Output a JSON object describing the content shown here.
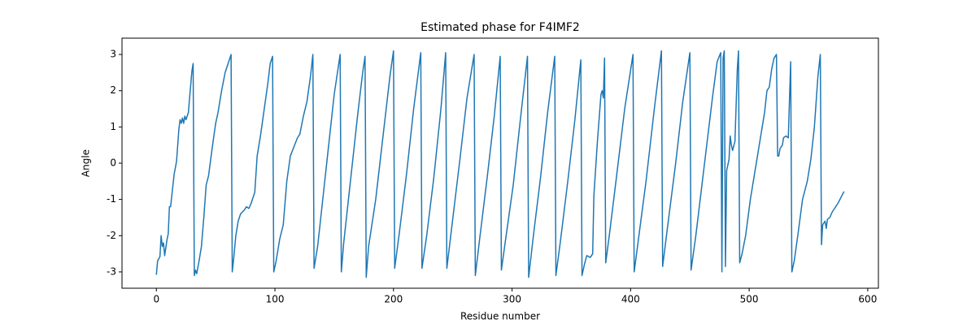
{
  "chart_data": {
    "type": "line",
    "title": "Estimated phase for F4IMF2",
    "x_label": "Residue number",
    "y_label": "Angle",
    "x": [
      0,
      1,
      3,
      4,
      5,
      6,
      7,
      9,
      10,
      11,
      12,
      13,
      15,
      17,
      19,
      20,
      21,
      22,
      23,
      24,
      25,
      27,
      28,
      30,
      31,
      32,
      33,
      34,
      36,
      38,
      40,
      42,
      44,
      47,
      50,
      52,
      55,
      58,
      63,
      64,
      65,
      67,
      69,
      71,
      74,
      76,
      78,
      80,
      83,
      85,
      88,
      91,
      94,
      96,
      98,
      99,
      101,
      104,
      107,
      110,
      113,
      116,
      119,
      121,
      124,
      127,
      130,
      132,
      133,
      136,
      140,
      145,
      150,
      155,
      156,
      158,
      162,
      166,
      170,
      174,
      176,
      177,
      179,
      185,
      191,
      197,
      200,
      201,
      205,
      211,
      217,
      223,
      224,
      228,
      234,
      240,
      244,
      245,
      249,
      256,
      262,
      268,
      269,
      273,
      279,
      285,
      290,
      291,
      295,
      301,
      307,
      313,
      314,
      318,
      324,
      330,
      336,
      337,
      341,
      347,
      353,
      358,
      359,
      361,
      363,
      366,
      368,
      369,
      372,
      375,
      376,
      377,
      378,
      379,
      382,
      388,
      395,
      402,
      403,
      407,
      413,
      420,
      426,
      427,
      431,
      438,
      444,
      450,
      451,
      455,
      462,
      469,
      473,
      476,
      477,
      478,
      479,
      480,
      481,
      483,
      484,
      485,
      486,
      488,
      490,
      491,
      492,
      494,
      497,
      501,
      506,
      510,
      513,
      515,
      517,
      519,
      521,
      523,
      524,
      525,
      526,
      528,
      529,
      531,
      533,
      535,
      536,
      538,
      541,
      545,
      549,
      552,
      555,
      558,
      560,
      561,
      562,
      564,
      565,
      566,
      568,
      570,
      575,
      580
    ],
    "series": [
      {
        "name": "phase",
        "color": "#1f77b4",
        "values": [
          -3.08,
          -2.7,
          -2.58,
          -2.0,
          -2.3,
          -2.2,
          -2.55,
          -2.1,
          -1.95,
          -1.2,
          -1.2,
          -0.9,
          -0.3,
          0.05,
          0.95,
          1.2,
          1.1,
          1.25,
          1.1,
          1.3,
          1.2,
          1.4,
          1.8,
          2.55,
          2.75,
          -3.1,
          -2.95,
          -3.05,
          -2.7,
          -2.3,
          -1.5,
          -0.6,
          -0.35,
          0.4,
          1.1,
          1.4,
          2.0,
          2.5,
          3.0,
          -3.0,
          -2.7,
          -2.0,
          -1.6,
          -1.4,
          -1.3,
          -1.2,
          -1.25,
          -1.1,
          -0.8,
          0.2,
          0.8,
          1.5,
          2.2,
          2.75,
          2.95,
          -3.0,
          -2.7,
          -2.1,
          -1.7,
          -0.5,
          0.2,
          0.45,
          0.7,
          0.8,
          1.3,
          1.7,
          2.4,
          3.0,
          -2.9,
          -2.3,
          -1.1,
          0.4,
          1.9,
          3.0,
          -3.0,
          -2.2,
          -1.0,
          0.2,
          1.4,
          2.5,
          2.95,
          -3.15,
          -2.3,
          -1.0,
          0.7,
          2.4,
          3.1,
          -2.9,
          -1.9,
          -0.3,
          1.5,
          3.05,
          -2.9,
          -2.0,
          -0.4,
          1.5,
          3.05,
          -2.9,
          -1.8,
          0.1,
          1.8,
          3.0,
          -3.1,
          -2.0,
          -0.4,
          1.3,
          2.95,
          -2.95,
          -2.0,
          -0.6,
          1.2,
          2.95,
          -3.15,
          -2.0,
          -0.4,
          1.4,
          2.95,
          -3.1,
          -2.1,
          -0.5,
          1.2,
          2.85,
          -3.1,
          -2.8,
          -2.55,
          -2.6,
          -2.5,
          -0.9,
          0.6,
          1.9,
          2.0,
          1.8,
          2.9,
          -2.75,
          -2.0,
          -0.4,
          1.5,
          3.0,
          -3.0,
          -2.0,
          -0.5,
          1.5,
          3.1,
          -2.85,
          -1.8,
          0,
          1.7,
          3.05,
          -2.95,
          -2.0,
          -0.1,
          1.8,
          2.8,
          3.05,
          -3.0,
          2.9,
          3.1,
          -2.85,
          -0.2,
          0.1,
          0.75,
          0.5,
          0.35,
          0.6,
          2.6,
          3.1,
          -2.75,
          -2.5,
          -2.0,
          -1.0,
          0,
          0.8,
          1.4,
          2.0,
          2.1,
          2.6,
          2.9,
          3.0,
          0.2,
          0.2,
          0.4,
          0.5,
          0.7,
          0.75,
          0.7,
          2.8,
          -3.0,
          -2.7,
          -2.0,
          -1.0,
          -0.5,
          0.1,
          1.0,
          2.4,
          3.0,
          -2.25,
          -1.7,
          -1.6,
          -1.8,
          -1.55,
          -1.5,
          -1.35,
          -1.1,
          -0.78
        ]
      }
    ],
    "xlim": [
      -29,
      609
    ],
    "ylim": [
      -3.45,
      3.45
    ],
    "xticks": [
      0,
      100,
      200,
      300,
      400,
      500,
      600
    ],
    "yticks": [
      -3,
      -2,
      -1,
      0,
      1,
      2,
      3
    ],
    "grid": false
  }
}
